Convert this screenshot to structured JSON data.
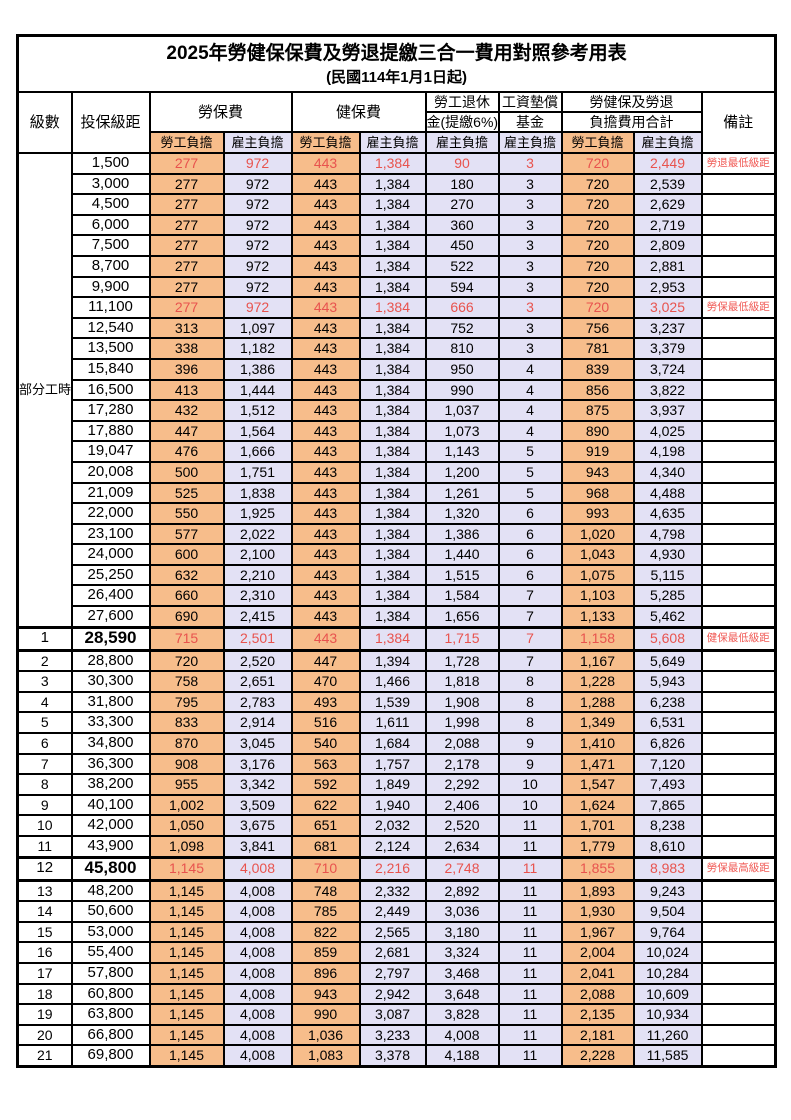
{
  "colors": {
    "employee_bg": "#f7bd8b",
    "employer_bg": "#e3e1f5",
    "highlight_red": "#e8534e",
    "remark_red": "#f05a55",
    "border": "#000000"
  },
  "table": {
    "title": "2025年勞健保保費及勞退提繳三合一費用對照參考用表",
    "subtitle": "(民國114年1月1日起)",
    "header": {
      "level": "級數",
      "bracket": "投保級距",
      "labor_insurance": "勞保費",
      "health_insurance": "健保費",
      "pension_line1": "勞工退休",
      "pension_line2": "金(提繳6%)",
      "wage_fund_line1": "工資墊償",
      "wage_fund_line2": "基金",
      "total_line1": "勞健保及勞退",
      "total_line2": "負擔費用合計",
      "remark": "備註",
      "employee": "勞工負擔",
      "employer": "雇主負擔"
    },
    "part_time_label": "部分工時",
    "rows": [
      {
        "level": "",
        "bracket": "1,500",
        "values": [
          "277",
          "972",
          "443",
          "1,384",
          "90",
          "3",
          "720",
          "2,449"
        ],
        "remark": "勞退最低級距",
        "red": true,
        "bold": false
      },
      {
        "level": "",
        "bracket": "3,000",
        "values": [
          "277",
          "972",
          "443",
          "1,384",
          "180",
          "3",
          "720",
          "2,539"
        ],
        "remark": "",
        "red": false,
        "bold": false
      },
      {
        "level": "",
        "bracket": "4,500",
        "values": [
          "277",
          "972",
          "443",
          "1,384",
          "270",
          "3",
          "720",
          "2,629"
        ],
        "remark": "",
        "red": false,
        "bold": false
      },
      {
        "level": "",
        "bracket": "6,000",
        "values": [
          "277",
          "972",
          "443",
          "1,384",
          "360",
          "3",
          "720",
          "2,719"
        ],
        "remark": "",
        "red": false,
        "bold": false
      },
      {
        "level": "",
        "bracket": "7,500",
        "values": [
          "277",
          "972",
          "443",
          "1,384",
          "450",
          "3",
          "720",
          "2,809"
        ],
        "remark": "",
        "red": false,
        "bold": false
      },
      {
        "level": "",
        "bracket": "8,700",
        "values": [
          "277",
          "972",
          "443",
          "1,384",
          "522",
          "3",
          "720",
          "2,881"
        ],
        "remark": "",
        "red": false,
        "bold": false
      },
      {
        "level": "",
        "bracket": "9,900",
        "values": [
          "277",
          "972",
          "443",
          "1,384",
          "594",
          "3",
          "720",
          "2,953"
        ],
        "remark": "",
        "red": false,
        "bold": false
      },
      {
        "level": "",
        "bracket": "11,100",
        "values": [
          "277",
          "972",
          "443",
          "1,384",
          "666",
          "3",
          "720",
          "3,025"
        ],
        "remark": "勞保最低級距",
        "red": true,
        "bold": false
      },
      {
        "level": "",
        "bracket": "12,540",
        "values": [
          "313",
          "1,097",
          "443",
          "1,384",
          "752",
          "3",
          "756",
          "3,237"
        ],
        "remark": "",
        "red": false,
        "bold": false
      },
      {
        "level": "",
        "bracket": "13,500",
        "values": [
          "338",
          "1,182",
          "443",
          "1,384",
          "810",
          "3",
          "781",
          "3,379"
        ],
        "remark": "",
        "red": false,
        "bold": false
      },
      {
        "level": "",
        "bracket": "15,840",
        "values": [
          "396",
          "1,386",
          "443",
          "1,384",
          "950",
          "4",
          "839",
          "3,724"
        ],
        "remark": "",
        "red": false,
        "bold": false
      },
      {
        "level": "",
        "bracket": "16,500",
        "values": [
          "413",
          "1,444",
          "443",
          "1,384",
          "990",
          "4",
          "856",
          "3,822"
        ],
        "remark": "",
        "red": false,
        "bold": false
      },
      {
        "level": "",
        "bracket": "17,280",
        "values": [
          "432",
          "1,512",
          "443",
          "1,384",
          "1,037",
          "4",
          "875",
          "3,937"
        ],
        "remark": "",
        "red": false,
        "bold": false
      },
      {
        "level": "",
        "bracket": "17,880",
        "values": [
          "447",
          "1,564",
          "443",
          "1,384",
          "1,073",
          "4",
          "890",
          "4,025"
        ],
        "remark": "",
        "red": false,
        "bold": false
      },
      {
        "level": "",
        "bracket": "19,047",
        "values": [
          "476",
          "1,666",
          "443",
          "1,384",
          "1,143",
          "5",
          "919",
          "4,198"
        ],
        "remark": "",
        "red": false,
        "bold": false
      },
      {
        "level": "",
        "bracket": "20,008",
        "values": [
          "500",
          "1,751",
          "443",
          "1,384",
          "1,200",
          "5",
          "943",
          "4,340"
        ],
        "remark": "",
        "red": false,
        "bold": false
      },
      {
        "level": "",
        "bracket": "21,009",
        "values": [
          "525",
          "1,838",
          "443",
          "1,384",
          "1,261",
          "5",
          "968",
          "4,488"
        ],
        "remark": "",
        "red": false,
        "bold": false
      },
      {
        "level": "",
        "bracket": "22,000",
        "values": [
          "550",
          "1,925",
          "443",
          "1,384",
          "1,320",
          "6",
          "993",
          "4,635"
        ],
        "remark": "",
        "red": false,
        "bold": false
      },
      {
        "level": "",
        "bracket": "23,100",
        "values": [
          "577",
          "2,022",
          "443",
          "1,384",
          "1,386",
          "6",
          "1,020",
          "4,798"
        ],
        "remark": "",
        "red": false,
        "bold": false
      },
      {
        "level": "",
        "bracket": "24,000",
        "values": [
          "600",
          "2,100",
          "443",
          "1,384",
          "1,440",
          "6",
          "1,043",
          "4,930"
        ],
        "remark": "",
        "red": false,
        "bold": false
      },
      {
        "level": "",
        "bracket": "25,250",
        "values": [
          "632",
          "2,210",
          "443",
          "1,384",
          "1,515",
          "6",
          "1,075",
          "5,115"
        ],
        "remark": "",
        "red": false,
        "bold": false
      },
      {
        "level": "",
        "bracket": "26,400",
        "values": [
          "660",
          "2,310",
          "443",
          "1,384",
          "1,584",
          "7",
          "1,103",
          "5,285"
        ],
        "remark": "",
        "red": false,
        "bold": false
      },
      {
        "level": "",
        "bracket": "27,600",
        "values": [
          "690",
          "2,415",
          "443",
          "1,384",
          "1,656",
          "7",
          "1,133",
          "5,462"
        ],
        "remark": "",
        "red": false,
        "bold": false
      },
      {
        "level": "1",
        "bracket": "28,590",
        "values": [
          "715",
          "2,501",
          "443",
          "1,384",
          "1,715",
          "7",
          "1,158",
          "5,608"
        ],
        "remark": "健保最低級距",
        "red": true,
        "bold": true
      },
      {
        "level": "2",
        "bracket": "28,800",
        "values": [
          "720",
          "2,520",
          "447",
          "1,394",
          "1,728",
          "7",
          "1,167",
          "5,649"
        ],
        "remark": "",
        "red": false,
        "bold": false
      },
      {
        "level": "3",
        "bracket": "30,300",
        "values": [
          "758",
          "2,651",
          "470",
          "1,466",
          "1,818",
          "8",
          "1,228",
          "5,943"
        ],
        "remark": "",
        "red": false,
        "bold": false
      },
      {
        "level": "4",
        "bracket": "31,800",
        "values": [
          "795",
          "2,783",
          "493",
          "1,539",
          "1,908",
          "8",
          "1,288",
          "6,238"
        ],
        "remark": "",
        "red": false,
        "bold": false
      },
      {
        "level": "5",
        "bracket": "33,300",
        "values": [
          "833",
          "2,914",
          "516",
          "1,611",
          "1,998",
          "8",
          "1,349",
          "6,531"
        ],
        "remark": "",
        "red": false,
        "bold": false
      },
      {
        "level": "6",
        "bracket": "34,800",
        "values": [
          "870",
          "3,045",
          "540",
          "1,684",
          "2,088",
          "9",
          "1,410",
          "6,826"
        ],
        "remark": "",
        "red": false,
        "bold": false
      },
      {
        "level": "7",
        "bracket": "36,300",
        "values": [
          "908",
          "3,176",
          "563",
          "1,757",
          "2,178",
          "9",
          "1,471",
          "7,120"
        ],
        "remark": "",
        "red": false,
        "bold": false
      },
      {
        "level": "8",
        "bracket": "38,200",
        "values": [
          "955",
          "3,342",
          "592",
          "1,849",
          "2,292",
          "10",
          "1,547",
          "7,493"
        ],
        "remark": "",
        "red": false,
        "bold": false
      },
      {
        "level": "9",
        "bracket": "40,100",
        "values": [
          "1,002",
          "3,509",
          "622",
          "1,940",
          "2,406",
          "10",
          "1,624",
          "7,865"
        ],
        "remark": "",
        "red": false,
        "bold": false
      },
      {
        "level": "10",
        "bracket": "42,000",
        "values": [
          "1,050",
          "3,675",
          "651",
          "2,032",
          "2,520",
          "11",
          "1,701",
          "8,238"
        ],
        "remark": "",
        "red": false,
        "bold": false
      },
      {
        "level": "11",
        "bracket": "43,900",
        "values": [
          "1,098",
          "3,841",
          "681",
          "2,124",
          "2,634",
          "11",
          "1,779",
          "8,610"
        ],
        "remark": "",
        "red": false,
        "bold": false
      },
      {
        "level": "12",
        "bracket": "45,800",
        "values": [
          "1,145",
          "4,008",
          "710",
          "2,216",
          "2,748",
          "11",
          "1,855",
          "8,983"
        ],
        "remark": "勞保最高級距",
        "red": true,
        "bold": true
      },
      {
        "level": "13",
        "bracket": "48,200",
        "values": [
          "1,145",
          "4,008",
          "748",
          "2,332",
          "2,892",
          "11",
          "1,893",
          "9,243"
        ],
        "remark": "",
        "red": false,
        "bold": false
      },
      {
        "level": "14",
        "bracket": "50,600",
        "values": [
          "1,145",
          "4,008",
          "785",
          "2,449",
          "3,036",
          "11",
          "1,930",
          "9,504"
        ],
        "remark": "",
        "red": false,
        "bold": false
      },
      {
        "level": "15",
        "bracket": "53,000",
        "values": [
          "1,145",
          "4,008",
          "822",
          "2,565",
          "3,180",
          "11",
          "1,967",
          "9,764"
        ],
        "remark": "",
        "red": false,
        "bold": false
      },
      {
        "level": "16",
        "bracket": "55,400",
        "values": [
          "1,145",
          "4,008",
          "859",
          "2,681",
          "3,324",
          "11",
          "2,004",
          "10,024"
        ],
        "remark": "",
        "red": false,
        "bold": false
      },
      {
        "level": "17",
        "bracket": "57,800",
        "values": [
          "1,145",
          "4,008",
          "896",
          "2,797",
          "3,468",
          "11",
          "2,041",
          "10,284"
        ],
        "remark": "",
        "red": false,
        "bold": false
      },
      {
        "level": "18",
        "bracket": "60,800",
        "values": [
          "1,145",
          "4,008",
          "943",
          "2,942",
          "3,648",
          "11",
          "2,088",
          "10,609"
        ],
        "remark": "",
        "red": false,
        "bold": false
      },
      {
        "level": "19",
        "bracket": "63,800",
        "values": [
          "1,145",
          "4,008",
          "990",
          "3,087",
          "3,828",
          "11",
          "2,135",
          "10,934"
        ],
        "remark": "",
        "red": false,
        "bold": false
      },
      {
        "level": "20",
        "bracket": "66,800",
        "values": [
          "1,145",
          "4,008",
          "1,036",
          "3,233",
          "4,008",
          "11",
          "2,181",
          "11,260"
        ],
        "remark": "",
        "red": false,
        "bold": false
      },
      {
        "level": "21",
        "bracket": "69,800",
        "values": [
          "1,145",
          "4,008",
          "1,083",
          "3,378",
          "4,188",
          "11",
          "2,228",
          "11,585"
        ],
        "remark": "",
        "red": false,
        "bold": false
      }
    ]
  }
}
